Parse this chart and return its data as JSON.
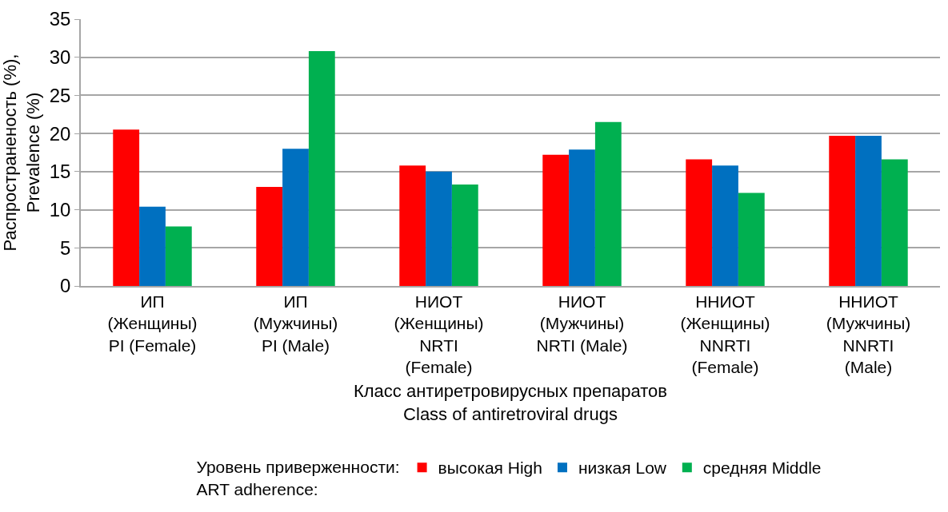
{
  "chart_data": {
    "type": "bar",
    "xlabel": "Класс антиретровирусных препаратов\nClass of antiretroviral drugs",
    "ylabel": "Распространеность (%),\nPrevalence (%)",
    "legend_title": "Уровень приверженности:\nART adherence:",
    "categories": [
      "ИП\n(Женщины)\nPI (Female)",
      "ИП\n(Мужчины)\nPI (Male)",
      "НИОТ\n(Женщины)\nNRTI\n(Female)",
      "НИОТ\n(Мужчины)\nNRTI (Male)",
      "ННИОТ\n(Женщины)\nNNRTI\n(Female)",
      "ННИОТ\n(Мужчины)\nNNRTI\n(Male)"
    ],
    "series": [
      {
        "name": "высокая High",
        "color": "#ff0000",
        "values": [
          20.5,
          13.0,
          15.8,
          17.2,
          16.6,
          19.7
        ]
      },
      {
        "name": "низкая Low",
        "color": "#0070c0",
        "values": [
          10.4,
          18.0,
          15.0,
          17.9,
          15.8,
          19.7
        ]
      },
      {
        "name": "средняя Middle",
        "color": "#00b050",
        "values": [
          7.8,
          30.8,
          13.3,
          21.5,
          12.2,
          16.6
        ]
      }
    ],
    "ylim": [
      0,
      35
    ],
    "yticks": [
      0,
      5,
      10,
      15,
      20,
      25,
      30,
      35
    ],
    "grid": "y",
    "legend": "bottom"
  }
}
